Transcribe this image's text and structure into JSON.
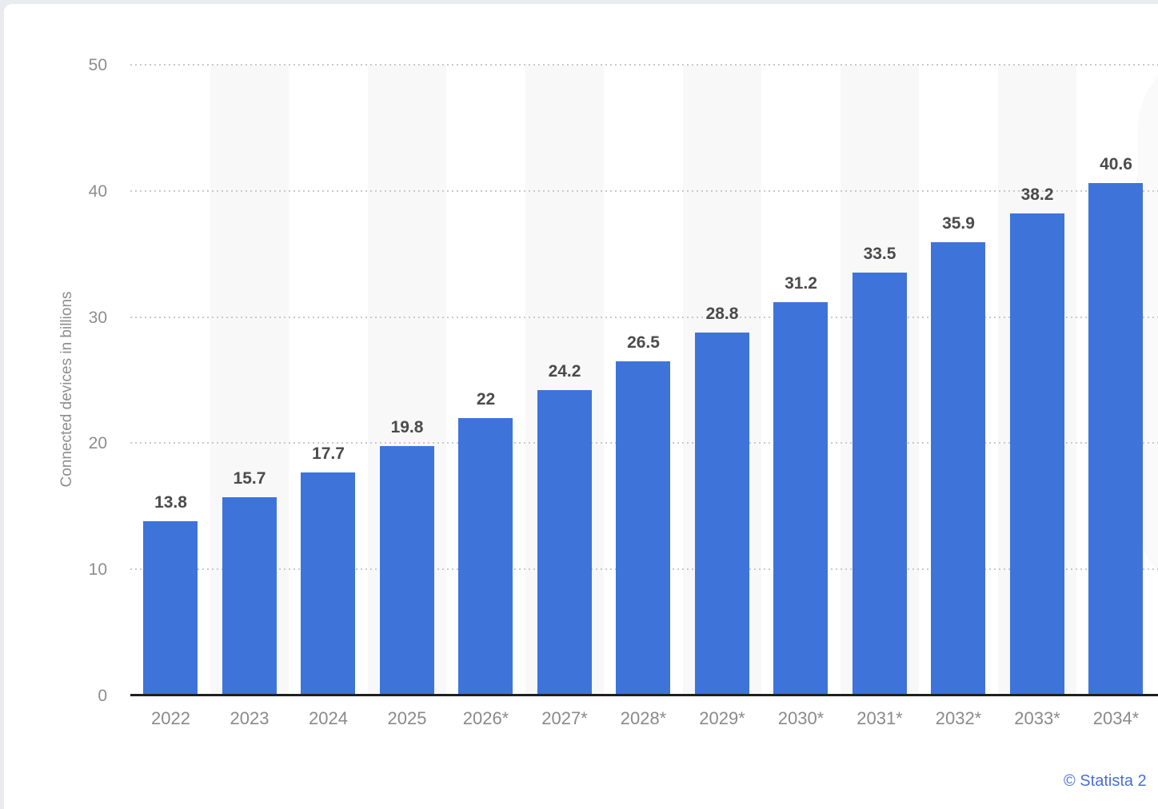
{
  "page": {
    "background_color": "#e9ebef",
    "card_color": "#ffffff"
  },
  "chart_data": {
    "type": "bar",
    "title": "",
    "categories": [
      "2022",
      "2023",
      "2024",
      "2025",
      "2026*",
      "2027*",
      "2028*",
      "2029*",
      "2030*",
      "2031*",
      "2032*",
      "2033*",
      "2034*"
    ],
    "values": [
      13.8,
      15.7,
      17.7,
      19.8,
      22,
      24.2,
      26.5,
      28.8,
      31.2,
      33.5,
      35.9,
      38.2,
      40.6
    ],
    "value_labels": [
      "13.8",
      "15.7",
      "17.7",
      "19.8",
      "22",
      "24.2",
      "26.5",
      "28.8",
      "31.2",
      "33.5",
      "35.9",
      "38.2",
      "40.6"
    ],
    "xlabel": "",
    "ylabel": "Connected devices in billions",
    "ylim": [
      0,
      50
    ],
    "yticks": [
      0,
      10,
      20,
      30,
      40,
      50
    ],
    "grid": "horizontal-dotted",
    "legend": "none",
    "bar_color": "#3e74d9",
    "stripe_color": "#f8f8f8",
    "striped_columns_note": "alternating column shading starting at 2023"
  },
  "footer": {
    "attribution": "© Statista 2",
    "attribution_color": "#4a6fd4"
  }
}
